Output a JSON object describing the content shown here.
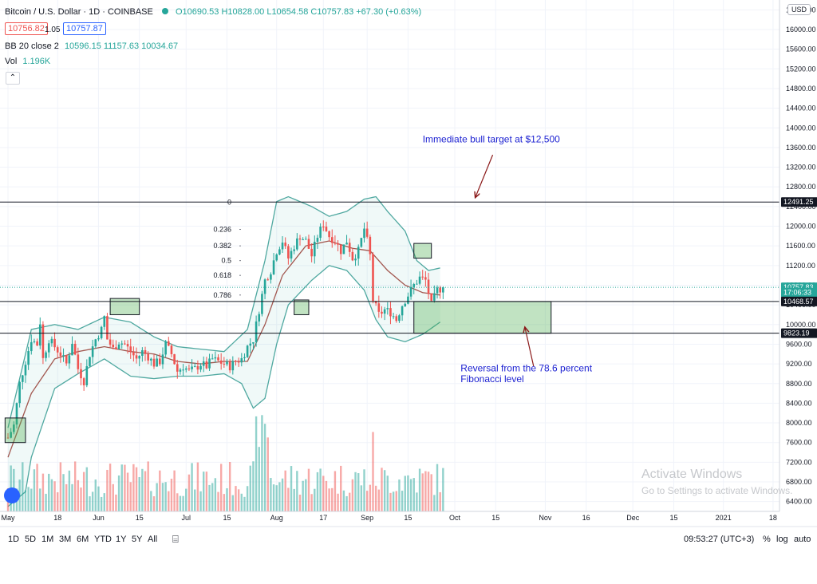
{
  "header": {
    "symbol": "Bitcoin / U.S. Dollar · 1D · COINBASE",
    "ohlc": "O10690.53 H10828.00 L10654.58 C10757.83 +67.30 (+0.63%)",
    "bid": "10756.82",
    "spread": "1.05",
    "ask": "10757.87",
    "bb_label": "BB 20 close 2",
    "bb_values": "10596.15  11157.63  10034.67",
    "vol_label": "Vol",
    "vol_value": "1.196K",
    "currency": "USD"
  },
  "toolbar": {
    "ranges": [
      "1D",
      "5D",
      "1M",
      "3M",
      "6M",
      "YTD",
      "1Y",
      "5Y",
      "All"
    ],
    "clock": "09:53:27 (UTC+3)",
    "percent": "%",
    "log": "log",
    "auto": "auto"
  },
  "watermark": {
    "title": "Activate Windows",
    "subtitle": "Go to Settings to activate Windows."
  },
  "chart_data": {
    "type": "candlestick",
    "title": "Bitcoin / U.S. Dollar · 1D · COINBASE",
    "ylim": [
      6200,
      16600
    ],
    "y_ticks": [
      6400,
      6800,
      7200,
      7600,
      8000,
      8400,
      8800,
      9200,
      9600,
      10000,
      10400,
      10800,
      11200,
      11600,
      12000,
      12400,
      12800,
      13200,
      13600,
      14000,
      14400,
      14800,
      15200,
      15600,
      16000,
      16400
    ],
    "y_tick_labels": [
      "6400.00",
      "6800.00",
      "7200.00",
      "7600.00",
      "8000.00",
      "8400.00",
      "8800.00",
      "9200.00",
      "9600.00",
      "10000.00",
      "10400.00",
      "10800.00",
      "11200.00",
      "11600.00",
      "12000.00",
      "12400.00",
      "12800.00",
      "13200.00",
      "13600.00",
      "14000.00",
      "14400.00",
      "14800.00",
      "15200.00",
      "15600.00",
      "16000.00",
      "16400.00"
    ],
    "x_ticks": [
      {
        "day": 0,
        "label": "May"
      },
      {
        "day": 17,
        "label": "18"
      },
      {
        "day": 31,
        "label": "Jun"
      },
      {
        "day": 45,
        "label": "15"
      },
      {
        "day": 61,
        "label": "Jul"
      },
      {
        "day": 75,
        "label": "15"
      },
      {
        "day": 92,
        "label": "Aug"
      },
      {
        "day": 108,
        "label": "17"
      },
      {
        "day": 123,
        "label": "Sep"
      },
      {
        "day": 137,
        "label": "15"
      },
      {
        "day": 153,
        "label": "Oct"
      },
      {
        "day": 167,
        "label": "15"
      },
      {
        "day": 184,
        "label": "Nov"
      },
      {
        "day": 198,
        "label": "16"
      },
      {
        "day": 214,
        "label": "Dec"
      },
      {
        "day": 228,
        "label": "15"
      },
      {
        "day": 245,
        "label": "2021"
      },
      {
        "day": 262,
        "label": "18"
      }
    ],
    "price_path": [
      [
        0,
        7700
      ],
      [
        2,
        7950
      ],
      [
        4,
        8800
      ],
      [
        6,
        9250
      ],
      [
        8,
        9700
      ],
      [
        10,
        9600
      ],
      [
        11,
        10050
      ],
      [
        12,
        9300
      ],
      [
        14,
        9700
      ],
      [
        16,
        9550
      ],
      [
        18,
        9400
      ],
      [
        20,
        9200
      ],
      [
        22,
        9650
      ],
      [
        24,
        9100
      ],
      [
        26,
        8850
      ],
      [
        28,
        9400
      ],
      [
        30,
        9700
      ],
      [
        32,
        9900
      ],
      [
        33,
        10150
      ],
      [
        34,
        9700
      ],
      [
        36,
        9500
      ],
      [
        38,
        9650
      ],
      [
        40,
        9600
      ],
      [
        42,
        9450
      ],
      [
        44,
        9300
      ],
      [
        46,
        9450
      ],
      [
        48,
        9350
      ],
      [
        50,
        9200
      ],
      [
        52,
        9250
      ],
      [
        54,
        9600
      ],
      [
        56,
        9400
      ],
      [
        58,
        9050
      ],
      [
        60,
        9150
      ],
      [
        62,
        9050
      ],
      [
        64,
        9100
      ],
      [
        66,
        9200
      ],
      [
        68,
        9150
      ],
      [
        70,
        9300
      ],
      [
        72,
        9250
      ],
      [
        74,
        9200
      ],
      [
        76,
        9150
      ],
      [
        78,
        9250
      ],
      [
        80,
        9300
      ],
      [
        82,
        9550
      ],
      [
        84,
        9700
      ],
      [
        86,
        10300
      ],
      [
        88,
        10900
      ],
      [
        90,
        11100
      ],
      [
        92,
        11500
      ],
      [
        94,
        11700
      ],
      [
        96,
        11350
      ],
      [
        98,
        11600
      ],
      [
        100,
        11800
      ],
      [
        102,
        11700
      ],
      [
        104,
        11400
      ],
      [
        106,
        11800
      ],
      [
        108,
        12050
      ],
      [
        110,
        11800
      ],
      [
        112,
        11700
      ],
      [
        114,
        11500
      ],
      [
        116,
        11700
      ],
      [
        118,
        11350
      ],
      [
        120,
        11500
      ],
      [
        122,
        11950
      ],
      [
        123,
        11700
      ],
      [
        124,
        11400
      ],
      [
        125,
        10500
      ],
      [
        127,
        10200
      ],
      [
        129,
        10300
      ],
      [
        131,
        10250
      ],
      [
        133,
        10100
      ],
      [
        135,
        10400
      ],
      [
        137,
        10600
      ],
      [
        139,
        10800
      ],
      [
        141,
        10950
      ],
      [
        143,
        10900
      ],
      [
        145,
        10400
      ],
      [
        147,
        10700
      ],
      [
        149,
        10750
      ]
    ],
    "bollinger": {
      "label": "BB 20 close 2",
      "upper": [
        [
          0,
          7900
        ],
        [
          8,
          9900
        ],
        [
          16,
          10000
        ],
        [
          24,
          9900
        ],
        [
          33,
          10150
        ],
        [
          42,
          10050
        ],
        [
          50,
          9750
        ],
        [
          58,
          9550
        ],
        [
          66,
          9500
        ],
        [
          74,
          9450
        ],
        [
          82,
          9900
        ],
        [
          88,
          11300
        ],
        [
          92,
          12500
        ],
        [
          96,
          12600
        ],
        [
          104,
          12400
        ],
        [
          110,
          12200
        ],
        [
          116,
          12300
        ],
        [
          122,
          12550
        ],
        [
          126,
          12600
        ],
        [
          130,
          12300
        ],
        [
          136,
          11900
        ],
        [
          140,
          11300
        ],
        [
          144,
          11100
        ],
        [
          148,
          11150
        ]
      ],
      "middle": [
        [
          0,
          7300
        ],
        [
          8,
          8600
        ],
        [
          16,
          9300
        ],
        [
          24,
          9450
        ],
        [
          33,
          9550
        ],
        [
          42,
          9450
        ],
        [
          50,
          9400
        ],
        [
          58,
          9250
        ],
        [
          66,
          9200
        ],
        [
          74,
          9250
        ],
        [
          82,
          9250
        ],
        [
          88,
          10000
        ],
        [
          94,
          11000
        ],
        [
          102,
          11600
        ],
        [
          110,
          11700
        ],
        [
          118,
          11550
        ],
        [
          124,
          11500
        ],
        [
          130,
          11100
        ],
        [
          136,
          10800
        ],
        [
          142,
          10650
        ],
        [
          148,
          10600
        ]
      ],
      "lower": [
        [
          0,
          6300
        ],
        [
          6,
          6600
        ],
        [
          8,
          7300
        ],
        [
          16,
          8700
        ],
        [
          24,
          9000
        ],
        [
          33,
          9300
        ],
        [
          42,
          8950
        ],
        [
          50,
          8900
        ],
        [
          58,
          8950
        ],
        [
          66,
          8950
        ],
        [
          74,
          9000
        ],
        [
          80,
          8800
        ],
        [
          84,
          8300
        ],
        [
          88,
          8500
        ],
        [
          92,
          9600
        ],
        [
          96,
          10400
        ],
        [
          104,
          10900
        ],
        [
          110,
          11200
        ],
        [
          116,
          11100
        ],
        [
          122,
          10700
        ],
        [
          126,
          10100
        ],
        [
          130,
          9750
        ],
        [
          136,
          9650
        ],
        [
          142,
          9800
        ],
        [
          148,
          10050
        ]
      ]
    },
    "fibonacci": [
      {
        "level": "0",
        "price": 12491
      },
      {
        "level": "0.236",
        "price": 11935
      },
      {
        "level": "0.382",
        "price": 11600
      },
      {
        "level": "0.5",
        "price": 11300
      },
      {
        "level": "0.618",
        "price": 11000
      },
      {
        "level": "0.786",
        "price": 10600
      }
    ],
    "horizontal_lines": [
      12491.25,
      10468.57,
      9823.19
    ],
    "price_labels": [
      {
        "price": 12491.25,
        "label": "12491.25",
        "style": "dark"
      },
      {
        "price": 10757.83,
        "label": "10757.83",
        "style": "green"
      },
      {
        "price": 10650,
        "label": "17:06:33",
        "style": "green"
      },
      {
        "price": 10468.57,
        "label": "10468.57",
        "style": "dark"
      },
      {
        "price": 9823.19,
        "label": "9823.19",
        "style": "dark"
      }
    ],
    "current_price": 10757.83,
    "annotations": [
      {
        "text": "Immediate bull target at $12,500",
        "day": 142,
        "price": 13700
      },
      {
        "text": "Reversal from the 78.6 percent",
        "day": 155,
        "price": 9050
      },
      {
        "text": "Fibonacci level",
        "day": 155,
        "price": 8830
      }
    ],
    "arrows": [
      {
        "from": [
          166,
          13450
        ],
        "to": [
          160,
          12580
        ]
      },
      {
        "from": [
          180,
          9150
        ],
        "to": [
          177,
          9950
        ]
      }
    ],
    "boxes": [
      {
        "from": [
          -1,
          7600
        ],
        "to": [
          6,
          8100
        ]
      },
      {
        "from": [
          35,
          10200
        ],
        "to": [
          45,
          10530
        ]
      },
      {
        "from": [
          98,
          10200
        ],
        "to": [
          103,
          10500
        ]
      },
      {
        "from": [
          139,
          11350
        ],
        "to": [
          145,
          11650
        ]
      },
      {
        "from": [
          139,
          9823
        ],
        "to": [
          186,
          10468
        ]
      }
    ],
    "volume": {
      "label": "Vol",
      "value": "1.196K"
    }
  }
}
